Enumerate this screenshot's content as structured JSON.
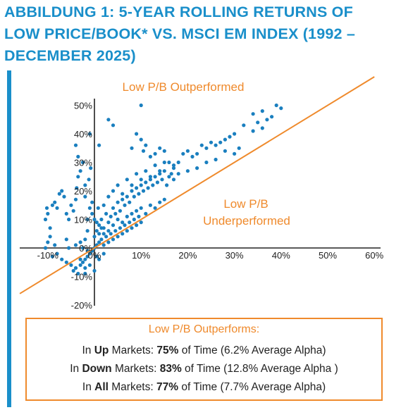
{
  "title": {
    "line1": "ABBILDUNG 1: 5-YEAR ROLLING RETURNS OF",
    "line2": "LOW PRICE/BOOK* VS. MSCI EM INDEX (1992 –",
    "line3": "DECEMBER 2025)"
  },
  "colors": {
    "accent": "#1a8fca",
    "orange": "#ef8a2c",
    "points": "#1a7fbf",
    "axis": "#222222"
  },
  "chart_data": {
    "type": "scatter",
    "xlabel": "",
    "ylabel": "",
    "xlim": [
      -15,
      60
    ],
    "ylim": [
      -20,
      52
    ],
    "x_ticks": [
      "-10%",
      "0%",
      "10%",
      "20%",
      "30%",
      "40%",
      "50%",
      "60%"
    ],
    "y_ticks": [
      "50%",
      "40%",
      "30%",
      "20%",
      "10%",
      "0%",
      "-10%",
      "-20%"
    ],
    "x_tick_values": [
      -10,
      0,
      10,
      20,
      30,
      40,
      50,
      60
    ],
    "y_tick_values": [
      50,
      40,
      30,
      20,
      10,
      0,
      -10,
      -20
    ],
    "reference_line": {
      "type": "y=x",
      "x_from": -16,
      "x_to": 60
    },
    "annotations": {
      "outperformed": "Low P/B Outperformed",
      "underperformed_1": "Low P/B",
      "underperformed_2": "Underperformed"
    },
    "points": [
      [
        -10.5,
        10
      ],
      [
        -10,
        12
      ],
      [
        -10.2,
        14
      ],
      [
        -9.5,
        7
      ],
      [
        -9,
        15
      ],
      [
        -8.5,
        16
      ],
      [
        -8,
        14
      ],
      [
        -7.5,
        19
      ],
      [
        -7,
        20
      ],
      [
        -6.5,
        18
      ],
      [
        -6,
        12
      ],
      [
        -5.5,
        10
      ],
      [
        -5,
        15
      ],
      [
        -4.5,
        13
      ],
      [
        -4,
        17
      ],
      [
        -3.8,
        21
      ],
      [
        -3.5,
        25
      ],
      [
        -3,
        27
      ],
      [
        -2.5,
        30
      ],
      [
        -4,
        36
      ],
      [
        -3.5,
        32
      ],
      [
        -1,
        14
      ],
      [
        -1.5,
        10
      ],
      [
        -2,
        18
      ],
      [
        -0.5,
        16
      ],
      [
        1,
        36
      ],
      [
        -1,
        40
      ],
      [
        -0.8,
        28
      ],
      [
        -2,
        22
      ],
      [
        -1.2,
        24
      ],
      [
        -9,
        -3
      ],
      [
        -8,
        -2
      ],
      [
        -7,
        -4
      ],
      [
        -6,
        -5
      ],
      [
        -5,
        -6
      ],
      [
        -4.5,
        -8
      ],
      [
        -4,
        -7
      ],
      [
        -3.5,
        -9
      ],
      [
        -3,
        -6
      ],
      [
        -2.5,
        -5
      ],
      [
        -2,
        -4
      ],
      [
        -1.5,
        -3
      ],
      [
        -1,
        -2
      ],
      [
        -0.5,
        -1
      ],
      [
        -2,
        -7
      ],
      [
        -3,
        -4
      ],
      [
        -10,
        2
      ],
      [
        -10.5,
        0
      ],
      [
        -9.5,
        4
      ],
      [
        -8.5,
        1
      ],
      [
        -6,
        3
      ],
      [
        -5.5,
        0
      ],
      [
        -4,
        1
      ],
      [
        -3,
        2
      ],
      [
        -2.5,
        0
      ],
      [
        -2,
        3
      ],
      [
        -1.5,
        -1
      ],
      [
        0,
        0
      ],
      [
        0.5,
        1
      ],
      [
        1,
        2
      ],
      [
        1.5,
        3
      ],
      [
        2,
        1
      ],
      [
        2.5,
        4
      ],
      [
        3,
        2
      ],
      [
        3.5,
        5
      ],
      [
        4,
        3
      ],
      [
        4.5,
        6
      ],
      [
        5,
        4
      ],
      [
        5.5,
        7
      ],
      [
        6,
        5
      ],
      [
        6.5,
        8
      ],
      [
        7,
        6
      ],
      [
        7.5,
        9
      ],
      [
        8,
        7
      ],
      [
        8.5,
        10
      ],
      [
        9,
        8
      ],
      [
        9.5,
        11
      ],
      [
        10,
        9
      ],
      [
        0.5,
        6
      ],
      [
        1,
        8
      ],
      [
        1.5,
        10
      ],
      [
        2,
        7
      ],
      [
        2.5,
        12
      ],
      [
        3,
        9
      ],
      [
        3.5,
        11
      ],
      [
        4,
        14
      ],
      [
        4.5,
        12
      ],
      [
        5,
        16
      ],
      [
        5.5,
        13
      ],
      [
        6,
        17
      ],
      [
        6.5,
        15
      ],
      [
        7,
        18
      ],
      [
        7.5,
        16
      ],
      [
        8,
        20
      ],
      [
        8.5,
        18
      ],
      [
        9,
        21
      ],
      [
        9.5,
        19
      ],
      [
        10,
        22
      ],
      [
        10.5,
        20
      ],
      [
        11,
        23
      ],
      [
        11.5,
        21
      ],
      [
        12,
        24
      ],
      [
        12.5,
        22
      ],
      [
        13,
        25
      ],
      [
        13.5,
        23
      ],
      [
        14,
        26
      ],
      [
        14.5,
        24
      ],
      [
        15,
        27
      ],
      [
        15.5,
        22
      ],
      [
        16,
        25
      ],
      [
        16.5,
        26
      ],
      [
        17,
        24
      ],
      [
        2,
        15
      ],
      [
        3,
        18
      ],
      [
        4,
        20
      ],
      [
        5,
        22
      ],
      [
        6,
        19
      ],
      [
        7,
        24
      ],
      [
        8,
        22
      ],
      [
        9,
        26
      ],
      [
        10,
        24
      ],
      [
        11,
        27
      ],
      [
        12,
        25
      ],
      [
        13,
        29
      ],
      [
        14,
        27
      ],
      [
        15,
        30
      ],
      [
        0,
        4
      ],
      [
        0.5,
        9
      ],
      [
        1,
        5
      ],
      [
        1.5,
        7
      ],
      [
        2,
        5
      ],
      [
        3,
        6
      ],
      [
        4,
        8
      ],
      [
        5,
        10
      ],
      [
        6,
        9
      ],
      [
        7,
        11
      ],
      [
        8,
        12
      ],
      [
        9,
        13
      ],
      [
        10,
        14
      ],
      [
        11,
        12
      ],
      [
        12,
        15
      ],
      [
        13,
        14
      ],
      [
        14,
        16
      ],
      [
        15,
        17
      ],
      [
        3,
        45
      ],
      [
        4,
        43
      ],
      [
        10,
        50
      ],
      [
        8,
        35
      ],
      [
        9,
        40
      ],
      [
        10,
        38
      ],
      [
        10.5,
        34
      ],
      [
        11,
        36
      ],
      [
        12,
        32
      ],
      [
        13,
        33
      ],
      [
        14,
        35
      ],
      [
        15,
        34
      ],
      [
        16,
        30
      ],
      [
        17,
        29
      ],
      [
        18,
        30
      ],
      [
        19,
        33
      ],
      [
        20,
        34
      ],
      [
        21,
        32
      ],
      [
        22,
        33
      ],
      [
        23,
        36
      ],
      [
        24,
        35
      ],
      [
        25,
        37
      ],
      [
        26,
        36
      ],
      [
        27,
        37
      ],
      [
        28,
        38
      ],
      [
        29,
        39
      ],
      [
        30,
        40
      ],
      [
        26,
        31
      ],
      [
        30,
        33
      ],
      [
        32,
        43
      ],
      [
        34,
        41
      ],
      [
        35,
        44
      ],
      [
        36,
        42
      ],
      [
        37,
        45
      ],
      [
        38,
        46
      ],
      [
        39,
        50
      ],
      [
        40,
        49
      ],
      [
        34,
        47
      ],
      [
        36,
        48
      ],
      [
        31,
        35
      ],
      [
        28,
        34
      ],
      [
        24,
        30
      ],
      [
        22,
        28
      ],
      [
        20,
        27
      ],
      [
        18,
        26
      ],
      [
        17,
        28
      ],
      [
        0,
        -8
      ],
      [
        -1,
        -6
      ],
      [
        -2,
        -9
      ],
      [
        1,
        -4
      ],
      [
        0.5,
        -3
      ],
      [
        2,
        -2
      ],
      [
        0,
        10
      ],
      [
        -0.5,
        12
      ],
      [
        0.8,
        14
      ],
      [
        -1.5,
        6
      ]
    ]
  },
  "summary": {
    "heading": "Low P/B Outperforms:",
    "rows": [
      {
        "prefix": "In ",
        "market": "Up",
        "mid": " Markets: ",
        "pct": "75%",
        "rest": " of Time (6.2% Average Alpha)"
      },
      {
        "prefix": "In ",
        "market": "Down",
        "mid": " Markets: ",
        "pct": "83%",
        "rest": " of Time (12.8% Average Alpha )"
      },
      {
        "prefix": "In ",
        "market": "All",
        "mid": " Markets: ",
        "pct": "77%",
        "rest": " of Time (7.7% Average Alpha)"
      }
    ]
  }
}
